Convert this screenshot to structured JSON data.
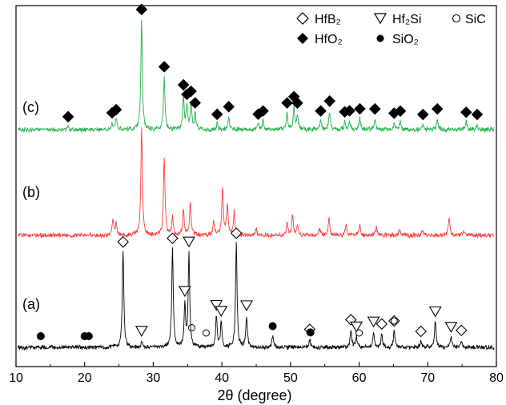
{
  "chart_data": {
    "type": "line",
    "title": "",
    "xlabel": "2θ (degree)",
    "ylabel": "",
    "xlim": [
      10,
      80
    ],
    "xticks": [
      10,
      20,
      30,
      40,
      50,
      60,
      70,
      80
    ],
    "grid": false,
    "legend_position": "top-right",
    "legend": [
      {
        "label": "HfB₂",
        "marker": "diamond-open"
      },
      {
        "label": "Hf₂Si",
        "marker": "triangle-down-open"
      },
      {
        "label": "SiC",
        "marker": "circle-open"
      },
      {
        "label": "HfO₂",
        "marker": "diamond-filled"
      },
      {
        "label": "SiO₂",
        "marker": "circle-filled"
      }
    ],
    "series": [
      {
        "label": "(a)",
        "color": "#000000",
        "peaks": [
          {
            "x": 25.6,
            "h": 0.92,
            "phase": "HfB₂"
          },
          {
            "x": 28.3,
            "h": 0.06,
            "phase": "Hf₂Si"
          },
          {
            "x": 32.8,
            "h": 0.95,
            "phase": "HfB₂"
          },
          {
            "x": 34.6,
            "h": 0.4,
            "phase": "Hf₂Si"
          },
          {
            "x": 35.2,
            "h": 0.9,
            "phase": "Hf₂Si"
          },
          {
            "x": 39.2,
            "h": 0.3,
            "phase": "Hf₂Si"
          },
          {
            "x": 39.9,
            "h": 0.24,
            "phase": "Hf₂Si"
          },
          {
            "x": 42.1,
            "h": 1.0,
            "phase": "HfB₂"
          },
          {
            "x": 43.6,
            "h": 0.3,
            "phase": "Hf₂Si"
          },
          {
            "x": 47.4,
            "h": 0.11,
            "phase": "SiO₂"
          },
          {
            "x": 52.8,
            "h": 0.08,
            "phase": "HfB₂"
          },
          {
            "x": 58.8,
            "h": 0.17,
            "phase": "HfB₂"
          },
          {
            "x": 59.6,
            "h": 0.1,
            "phase": "Hf₂Si"
          },
          {
            "x": 62.1,
            "h": 0.15,
            "phase": "Hf₂Si"
          },
          {
            "x": 63.3,
            "h": 0.13,
            "phase": "HfB₂"
          },
          {
            "x": 65.1,
            "h": 0.16,
            "phase": "HfB₂"
          },
          {
            "x": 69.0,
            "h": 0.06,
            "phase": "HfB₂"
          },
          {
            "x": 71.1,
            "h": 0.25,
            "phase": "Hf₂Si"
          },
          {
            "x": 73.4,
            "h": 0.1,
            "phase": "Hf₂Si"
          },
          {
            "x": 74.9,
            "h": 0.07,
            "phase": "HfB₂"
          }
        ]
      },
      {
        "label": "(b)",
        "color": "#ff3b3b",
        "peaks": [
          {
            "x": 24.1,
            "h": 0.15
          },
          {
            "x": 24.6,
            "h": 0.12
          },
          {
            "x": 28.3,
            "h": 1.0
          },
          {
            "x": 31.6,
            "h": 0.75
          },
          {
            "x": 32.8,
            "h": 0.18
          },
          {
            "x": 34.4,
            "h": 0.25
          },
          {
            "x": 35.4,
            "h": 0.32
          },
          {
            "x": 38.8,
            "h": 0.15
          },
          {
            "x": 40.1,
            "h": 0.46
          },
          {
            "x": 40.8,
            "h": 0.3
          },
          {
            "x": 41.8,
            "h": 0.22
          },
          {
            "x": 45.0,
            "h": 0.06
          },
          {
            "x": 49.5,
            "h": 0.12
          },
          {
            "x": 50.3,
            "h": 0.2
          },
          {
            "x": 51.0,
            "h": 0.1
          },
          {
            "x": 54.2,
            "h": 0.07
          },
          {
            "x": 55.6,
            "h": 0.15
          },
          {
            "x": 58.1,
            "h": 0.1
          },
          {
            "x": 60.1,
            "h": 0.1
          },
          {
            "x": 62.5,
            "h": 0.08
          },
          {
            "x": 65.9,
            "h": 0.06
          },
          {
            "x": 69.2,
            "h": 0.05
          },
          {
            "x": 73.1,
            "h": 0.17
          },
          {
            "x": 75.3,
            "h": 0.05
          }
        ]
      },
      {
        "label": "(c)",
        "color": "#22b04a",
        "peaks": [
          {
            "x": 17.6,
            "h": 0.03
          },
          {
            "x": 24.0,
            "h": 0.06
          },
          {
            "x": 24.6,
            "h": 0.09
          },
          {
            "x": 28.3,
            "h": 1.0
          },
          {
            "x": 31.6,
            "h": 0.48
          },
          {
            "x": 34.4,
            "h": 0.3
          },
          {
            "x": 34.9,
            "h": 0.2
          },
          {
            "x": 35.5,
            "h": 0.24
          },
          {
            "x": 36.1,
            "h": 0.14
          },
          {
            "x": 39.3,
            "h": 0.05
          },
          {
            "x": 41.0,
            "h": 0.12
          },
          {
            "x": 45.3,
            "h": 0.05
          },
          {
            "x": 46.0,
            "h": 0.08
          },
          {
            "x": 49.5,
            "h": 0.15
          },
          {
            "x": 50.5,
            "h": 0.2
          },
          {
            "x": 51.0,
            "h": 0.14
          },
          {
            "x": 54.4,
            "h": 0.08
          },
          {
            "x": 55.7,
            "h": 0.17
          },
          {
            "x": 57.9,
            "h": 0.07
          },
          {
            "x": 58.6,
            "h": 0.08
          },
          {
            "x": 60.1,
            "h": 0.1
          },
          {
            "x": 62.3,
            "h": 0.1
          },
          {
            "x": 65.1,
            "h": 0.06
          },
          {
            "x": 66.0,
            "h": 0.08
          },
          {
            "x": 69.3,
            "h": 0.05
          },
          {
            "x": 71.4,
            "h": 0.1
          },
          {
            "x": 75.6,
            "h": 0.07
          },
          {
            "x": 77.2,
            "h": 0.05
          }
        ]
      }
    ],
    "markers": [
      {
        "series": "(a)",
        "phase": "SiO₂",
        "marker": "circle-filled",
        "x": [
          13.6,
          20.0,
          20.6,
          52.9,
          47.4
        ]
      },
      {
        "series": "(a)",
        "phase": "SiC",
        "marker": "circle-open",
        "x": [
          35.6,
          37.7,
          60.0,
          65.1
        ]
      },
      {
        "series": "(c)",
        "phase": "HfO₂",
        "marker": "diamond-filled",
        "x": [
          17.6,
          24.0,
          24.6,
          28.3,
          31.6,
          34.4,
          34.9,
          35.5,
          36.1,
          39.3,
          41.0,
          45.3,
          46.0,
          49.5,
          50.5,
          51.0,
          54.4,
          55.7,
          57.9,
          58.6,
          60.1,
          62.3,
          65.1,
          66.0,
          69.3,
          71.4,
          75.6,
          77.2
        ]
      }
    ]
  }
}
